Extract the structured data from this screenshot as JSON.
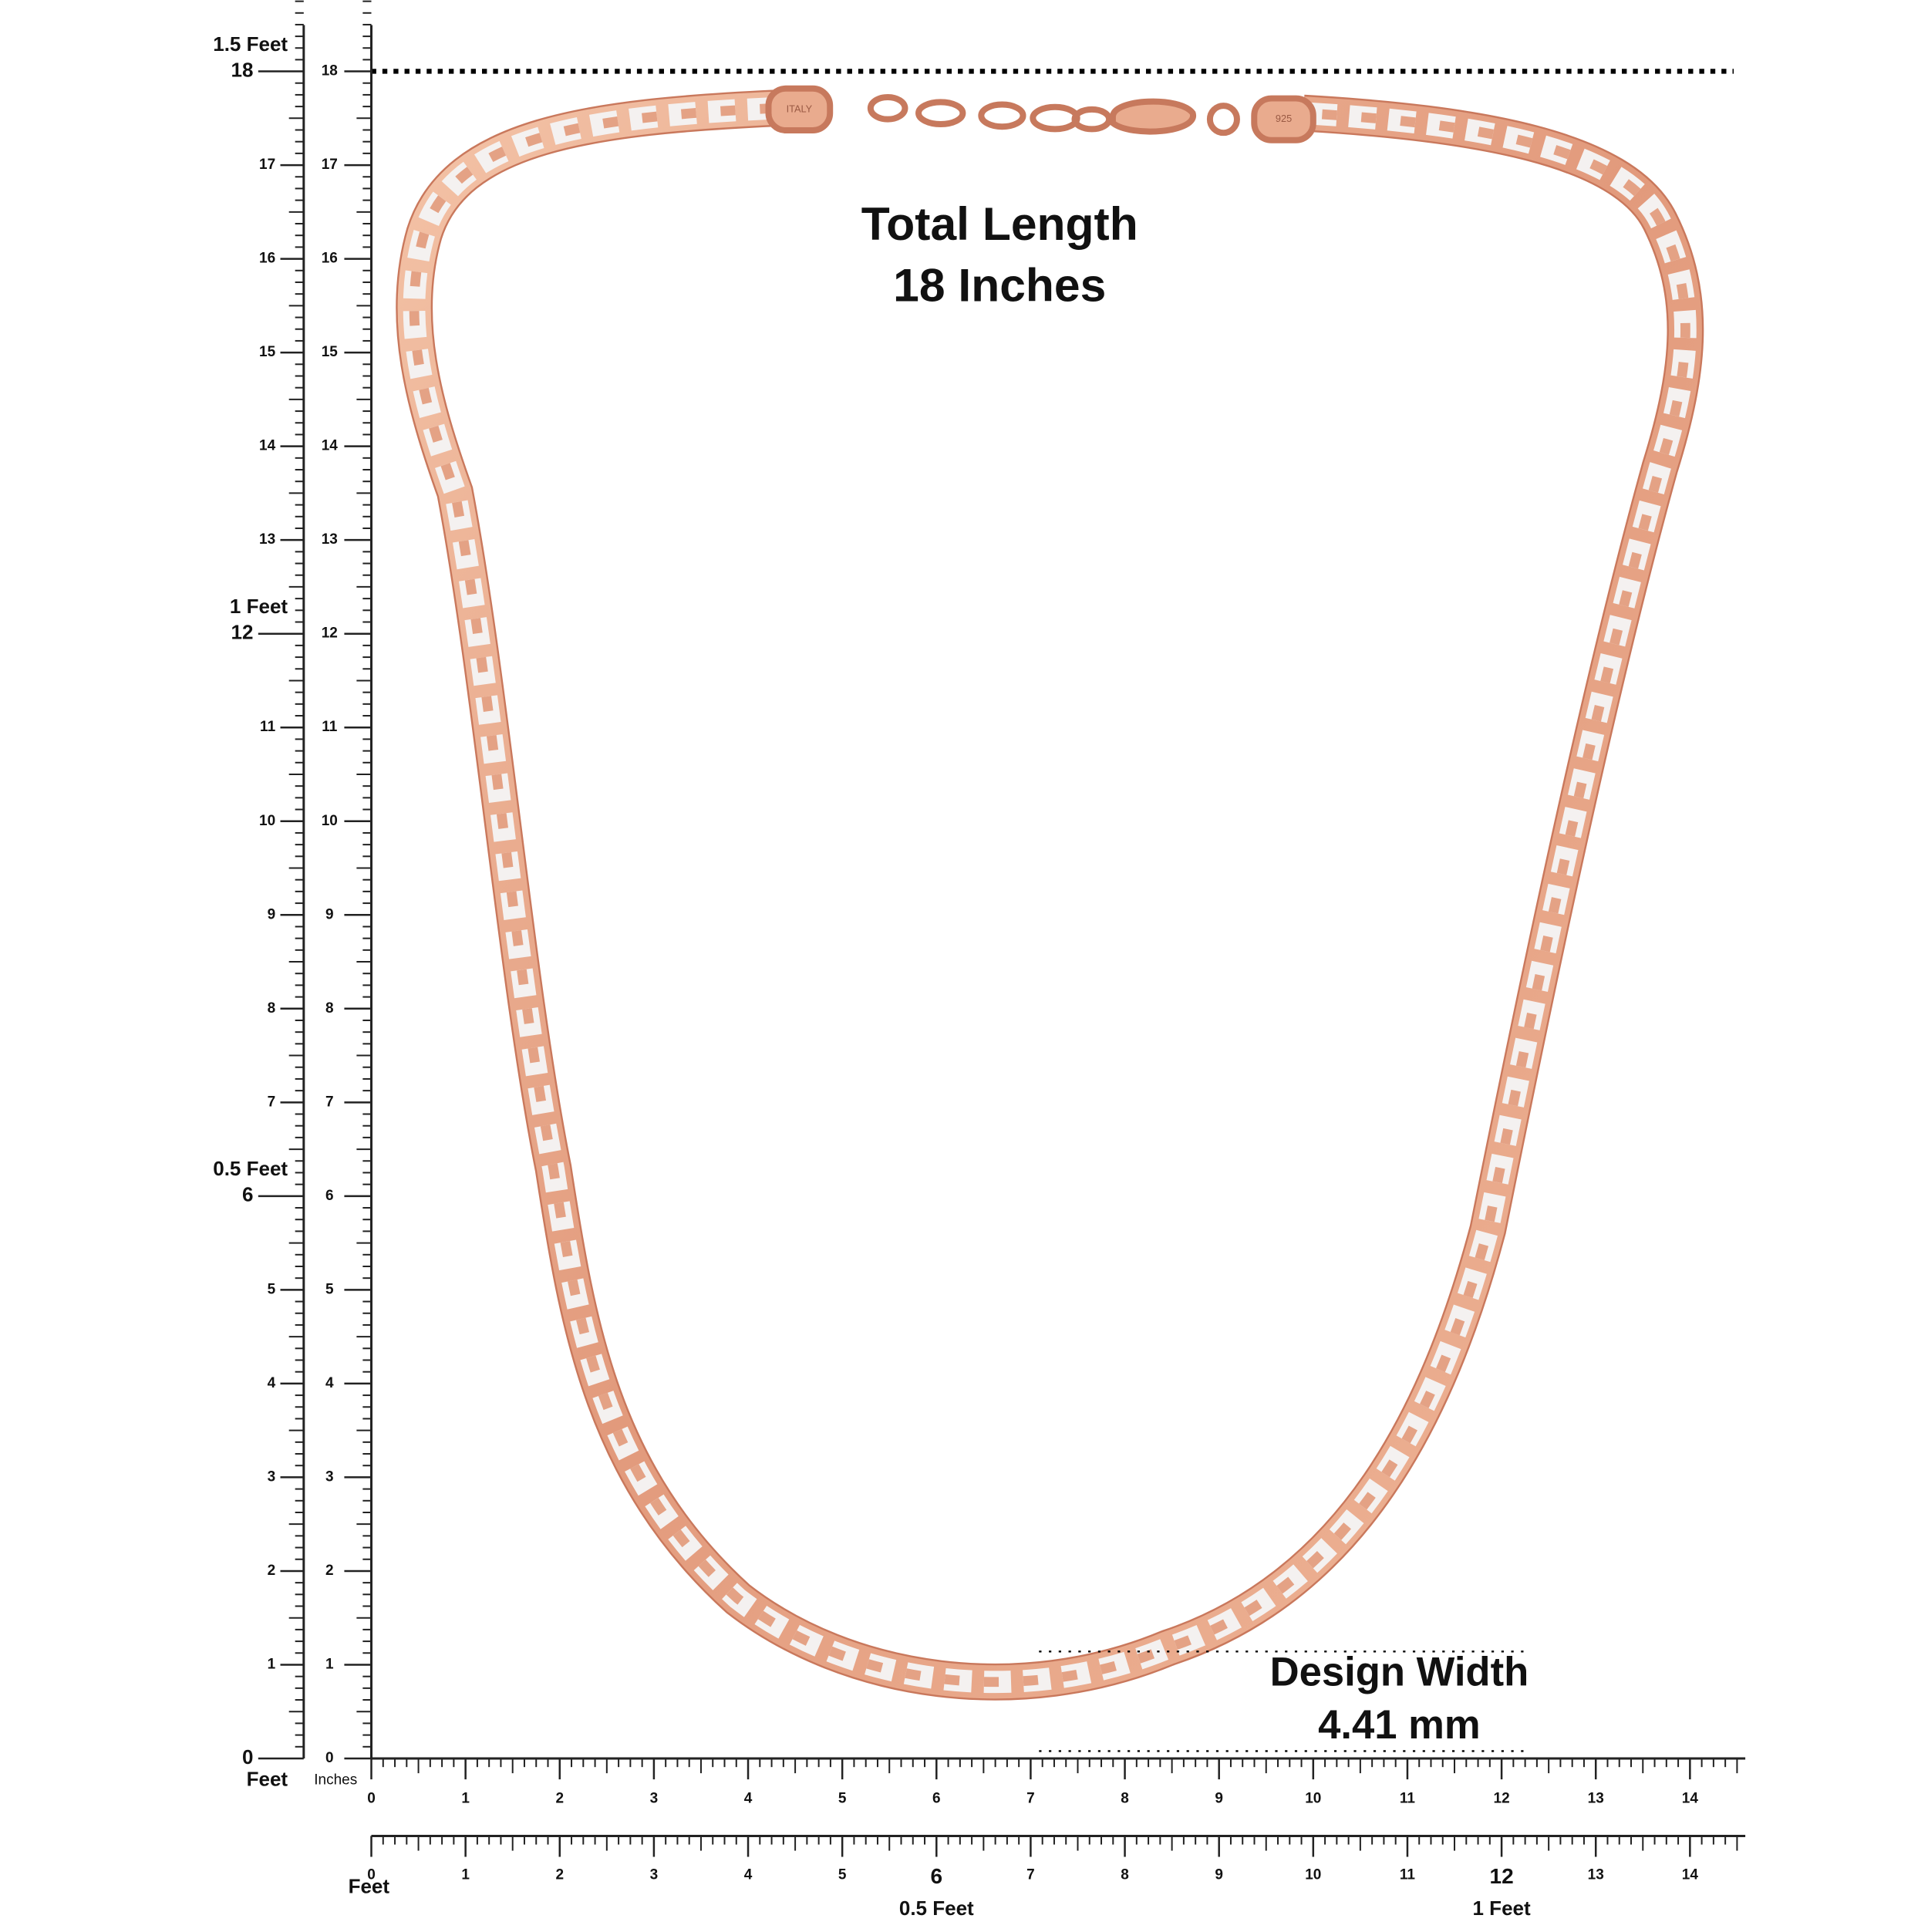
{
  "left_ruler": {
    "outer_ticks": [
      0,
      1,
      2,
      3,
      4,
      5,
      6,
      7,
      8,
      9,
      10,
      11,
      12,
      13,
      14,
      15,
      16,
      17,
      18
    ],
    "feet_labels": [
      "Feet",
      "0.5 Feet",
      "1 Feet",
      "1.5 Feet"
    ],
    "inner_ticks": [
      0,
      1,
      2,
      3,
      4,
      5,
      6,
      7,
      8,
      9,
      10,
      11,
      12,
      13,
      14,
      15,
      16,
      17,
      18
    ],
    "inner_unit": "Inches"
  },
  "bottom_ruler_inches": {
    "ticks": [
      0,
      1,
      2,
      3,
      4,
      5,
      6,
      7,
      8,
      9,
      10,
      11,
      12,
      13,
      14
    ]
  },
  "bottom_ruler_feet": {
    "ticks": [
      0,
      1,
      2,
      3,
      4,
      5,
      6,
      7,
      8,
      9,
      10,
      11,
      12,
      13,
      14
    ],
    "feet_labels": [
      "Feet",
      "0.5 Feet",
      "1 Feet"
    ]
  },
  "annotations": {
    "total_length": {
      "line1": "Total Length",
      "line2": "18 Inches"
    },
    "design_width": {
      "line1": "Design Width",
      "line2": "4.41 mm"
    },
    "clasp_left": "ITALY",
    "clasp_right": "925"
  }
}
